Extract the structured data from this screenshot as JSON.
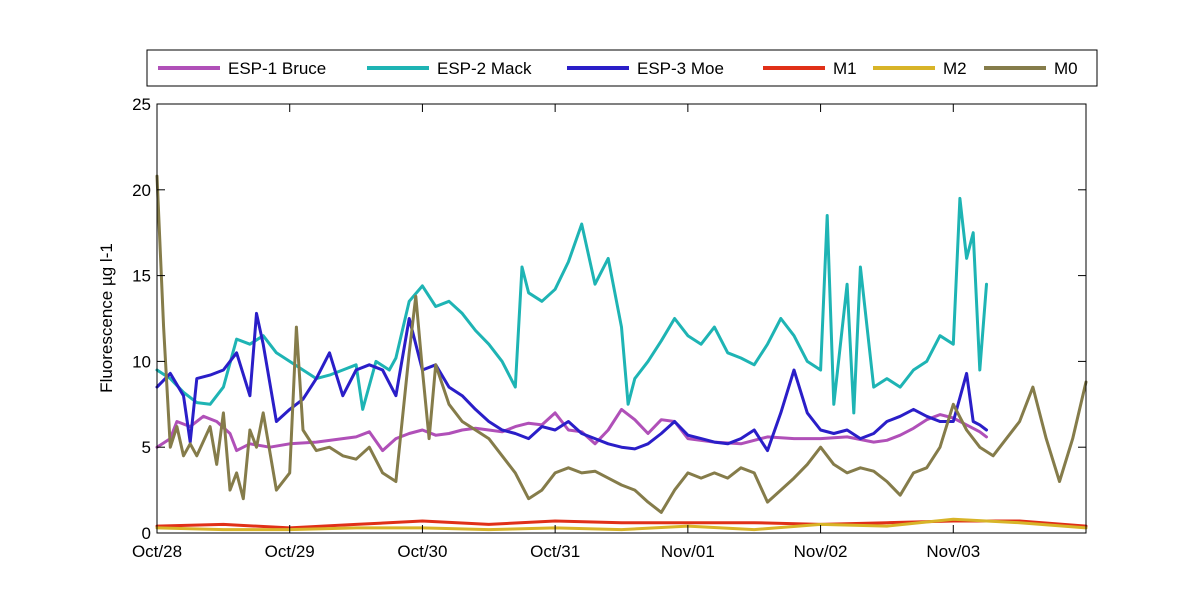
{
  "chart_data": {
    "type": "line",
    "title": "",
    "xlabel": "",
    "ylabel": "Fluorescence µg l-1",
    "ylim": [
      0,
      25
    ],
    "xlim": [
      0,
      7
    ],
    "yticks": [
      0,
      5,
      10,
      15,
      20,
      25
    ],
    "xticks": [
      {
        "x": 0,
        "label": "Oct/28"
      },
      {
        "x": 1,
        "label": "Oct/29"
      },
      {
        "x": 2,
        "label": "Oct/30"
      },
      {
        "x": 3,
        "label": "Oct/31"
      },
      {
        "x": 4,
        "label": "Nov/01"
      },
      {
        "x": 5,
        "label": "Nov/02"
      },
      {
        "x": 6,
        "label": "Nov/03"
      }
    ],
    "grid": false,
    "legend": "top, horizontal, outside plot",
    "series": [
      {
        "name": "ESP-1 Bruce",
        "color": "#b050b8",
        "x": [
          0,
          0.1,
          0.15,
          0.25,
          0.35,
          0.45,
          0.55,
          0.6,
          0.7,
          0.85,
          1,
          1.2,
          1.4,
          1.5,
          1.6,
          1.7,
          1.8,
          1.9,
          2,
          2.1,
          2.2,
          2.3,
          2.4,
          2.5,
          2.6,
          2.7,
          2.8,
          2.9,
          3,
          3.1,
          3.2,
          3.3,
          3.4,
          3.5,
          3.6,
          3.7,
          3.8,
          3.9,
          4,
          4.2,
          4.4,
          4.6,
          4.8,
          5,
          5.2,
          5.4,
          5.5,
          5.6,
          5.7,
          5.8,
          5.9,
          6,
          6.1,
          6.2,
          6.25
        ],
        "y": [
          5.0,
          5.5,
          6.5,
          6.2,
          6.8,
          6.5,
          5.8,
          4.8,
          5.2,
          5.0,
          5.2,
          5.3,
          5.5,
          5.6,
          5.9,
          4.8,
          5.5,
          5.8,
          6.0,
          5.7,
          5.8,
          6.0,
          6.1,
          6.0,
          5.9,
          6.2,
          6.4,
          6.3,
          7.0,
          6.0,
          5.9,
          5.2,
          6.0,
          7.2,
          6.6,
          5.8,
          6.6,
          6.5,
          5.5,
          5.3,
          5.2,
          5.6,
          5.5,
          5.5,
          5.6,
          5.3,
          5.4,
          5.7,
          6.1,
          6.6,
          6.9,
          6.7,
          6.3,
          5.9,
          5.6
        ]
      },
      {
        "name": "ESP-2 Mack",
        "color": "#1eb4b4",
        "x": [
          0,
          0.1,
          0.2,
          0.3,
          0.4,
          0.5,
          0.6,
          0.7,
          0.8,
          0.9,
          1,
          1.1,
          1.2,
          1.3,
          1.4,
          1.5,
          1.55,
          1.65,
          1.75,
          1.8,
          1.9,
          2,
          2.1,
          2.2,
          2.3,
          2.4,
          2.5,
          2.6,
          2.7,
          2.75,
          2.8,
          2.9,
          3,
          3.1,
          3.2,
          3.3,
          3.4,
          3.5,
          3.55,
          3.6,
          3.7,
          3.8,
          3.9,
          4,
          4.1,
          4.2,
          4.3,
          4.4,
          4.5,
          4.6,
          4.7,
          4.8,
          4.9,
          5,
          5.05,
          5.1,
          5.2,
          5.25,
          5.3,
          5.4,
          5.5,
          5.6,
          5.7,
          5.8,
          5.9,
          6,
          6.05,
          6.1,
          6.15,
          6.2,
          6.25
        ],
        "y": [
          9.5,
          9.0,
          8.2,
          7.6,
          7.5,
          8.5,
          11.3,
          11.0,
          11.5,
          10.5,
          10.0,
          9.5,
          9.0,
          9.2,
          9.5,
          9.8,
          7.2,
          10.0,
          9.5,
          10.2,
          13.5,
          14.4,
          13.2,
          13.5,
          12.8,
          11.8,
          11.0,
          10.0,
          8.5,
          15.5,
          14.0,
          13.5,
          14.2,
          15.8,
          18.0,
          14.5,
          16.0,
          12.0,
          7.5,
          9.0,
          10.0,
          11.2,
          12.5,
          11.5,
          11.0,
          12.0,
          10.5,
          10.2,
          9.8,
          11.0,
          12.5,
          11.5,
          10.0,
          9.5,
          18.5,
          7.5,
          14.5,
          7.0,
          15.5,
          8.5,
          9.0,
          8.5,
          9.5,
          10.0,
          11.5,
          11.0,
          19.5,
          16.0,
          17.5,
          9.5,
          14.5
        ]
      },
      {
        "name": "ESP-3 Moe",
        "color": "#2a1ec8",
        "x": [
          0,
          0.1,
          0.2,
          0.25,
          0.3,
          0.4,
          0.5,
          0.6,
          0.7,
          0.75,
          0.8,
          0.9,
          1,
          1.1,
          1.2,
          1.3,
          1.4,
          1.5,
          1.6,
          1.7,
          1.8,
          1.9,
          2,
          2.1,
          2.2,
          2.3,
          2.4,
          2.5,
          2.6,
          2.7,
          2.8,
          2.9,
          3,
          3.1,
          3.2,
          3.3,
          3.4,
          3.5,
          3.6,
          3.7,
          3.8,
          3.9,
          4,
          4.1,
          4.2,
          4.3,
          4.4,
          4.5,
          4.6,
          4.7,
          4.8,
          4.9,
          5,
          5.1,
          5.2,
          5.3,
          5.4,
          5.5,
          5.6,
          5.7,
          5.8,
          5.9,
          6,
          6.1,
          6.15,
          6.2,
          6.25
        ],
        "y": [
          8.5,
          9.3,
          8.0,
          5.3,
          9.0,
          9.2,
          9.5,
          10.5,
          8.0,
          12.8,
          11.0,
          6.5,
          7.2,
          7.8,
          9.0,
          10.5,
          8.0,
          9.5,
          9.8,
          9.5,
          8.0,
          12.5,
          9.5,
          9.8,
          8.5,
          8.0,
          7.2,
          6.5,
          6.0,
          5.8,
          5.5,
          6.2,
          6.0,
          6.5,
          5.8,
          5.5,
          5.2,
          5.0,
          4.9,
          5.2,
          5.8,
          6.5,
          5.7,
          5.5,
          5.3,
          5.2,
          5.5,
          6.0,
          4.8,
          7.0,
          9.5,
          7.0,
          6.0,
          5.8,
          6.0,
          5.5,
          5.8,
          6.5,
          6.8,
          7.2,
          6.8,
          6.5,
          6.5,
          9.3,
          6.5,
          6.3,
          6.0
        ]
      },
      {
        "name": "M1",
        "color": "#e03018",
        "x": [
          0,
          0.5,
          1,
          1.5,
          2,
          2.5,
          3,
          3.5,
          4,
          4.5,
          5,
          5.5,
          6,
          6.5,
          7
        ],
        "y": [
          0.4,
          0.5,
          0.3,
          0.5,
          0.7,
          0.5,
          0.7,
          0.6,
          0.6,
          0.6,
          0.5,
          0.6,
          0.7,
          0.7,
          0.4
        ]
      },
      {
        "name": "M2",
        "color": "#d8b428",
        "x": [
          0,
          0.5,
          1,
          1.5,
          2,
          2.5,
          3,
          3.5,
          4,
          4.5,
          5,
          5.5,
          6,
          6.5,
          7
        ],
        "y": [
          0.3,
          0.2,
          0.2,
          0.3,
          0.3,
          0.2,
          0.3,
          0.2,
          0.4,
          0.2,
          0.5,
          0.4,
          0.8,
          0.6,
          0.3
        ]
      },
      {
        "name": "M0",
        "color": "#857c4a",
        "x": [
          0,
          0.05,
          0.1,
          0.15,
          0.2,
          0.25,
          0.3,
          0.4,
          0.45,
          0.5,
          0.55,
          0.6,
          0.65,
          0.7,
          0.75,
          0.8,
          0.9,
          1,
          1.05,
          1.1,
          1.2,
          1.3,
          1.4,
          1.5,
          1.6,
          1.7,
          1.8,
          1.9,
          1.95,
          2,
          2.05,
          2.1,
          2.2,
          2.3,
          2.4,
          2.5,
          2.6,
          2.7,
          2.8,
          2.9,
          3,
          3.1,
          3.2,
          3.3,
          3.4,
          3.5,
          3.6,
          3.7,
          3.8,
          3.9,
          4,
          4.1,
          4.2,
          4.3,
          4.4,
          4.5,
          4.6,
          4.7,
          4.8,
          4.9,
          5,
          5.1,
          5.2,
          5.3,
          5.4,
          5.5,
          5.6,
          5.7,
          5.8,
          5.9,
          6,
          6.1,
          6.2,
          6.3,
          6.4,
          6.5,
          6.6,
          6.7,
          6.8,
          6.9,
          7
        ],
        "y": [
          20.8,
          12.0,
          5.0,
          6.2,
          4.5,
          5.2,
          4.5,
          6.2,
          4.0,
          7.0,
          2.5,
          3.5,
          2.0,
          6.0,
          5.0,
          7.0,
          2.5,
          3.5,
          12.0,
          6.0,
          4.8,
          5.0,
          4.5,
          4.3,
          5.0,
          3.5,
          3.0,
          10.5,
          13.8,
          9.5,
          5.5,
          9.8,
          7.5,
          6.5,
          6.0,
          5.5,
          4.5,
          3.5,
          2.0,
          2.5,
          3.5,
          3.8,
          3.5,
          3.6,
          3.2,
          2.8,
          2.5,
          1.8,
          1.2,
          2.5,
          3.5,
          3.2,
          3.5,
          3.2,
          3.8,
          3.5,
          1.8,
          2.5,
          3.2,
          4.0,
          5.0,
          4.0,
          3.5,
          3.8,
          3.6,
          3.0,
          2.2,
          3.5,
          3.8,
          5.0,
          7.5,
          6.0,
          5.0,
          4.5,
          5.5,
          6.5,
          8.5,
          5.5,
          3.0,
          5.5,
          8.8
        ]
      }
    ]
  }
}
